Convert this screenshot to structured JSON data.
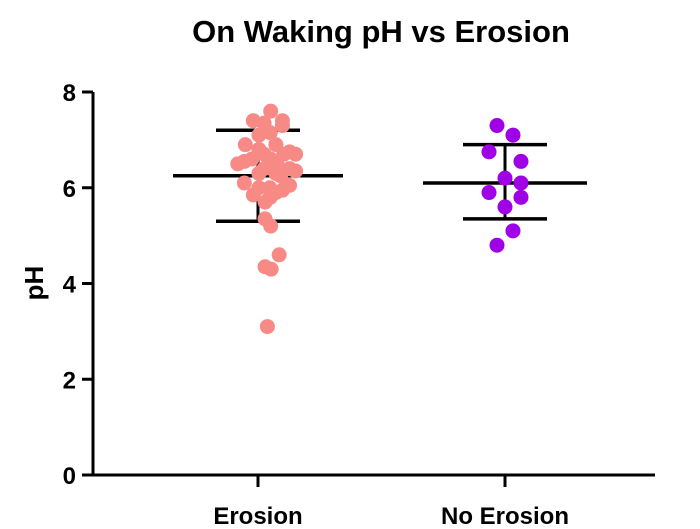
{
  "chart_data": {
    "type": "scatter",
    "title": "On Waking pH vs Erosion",
    "xlabel": "",
    "ylabel": "pH",
    "ylim": [
      0,
      8
    ],
    "yticks": [
      0,
      2,
      4,
      6,
      8
    ],
    "grid": false,
    "legend": "none",
    "categories": [
      "Erosion",
      "No Erosion"
    ],
    "series": [
      {
        "category": "Erosion",
        "color": "#f88a86",
        "summary": {
          "mean": 6.25,
          "sd_upper": 7.2,
          "sd_lower": 5.3
        },
        "points": [
          {
            "offset": -0.43,
            "y": 6.5
          },
          {
            "offset": -0.29,
            "y": 6.55
          },
          {
            "offset": -0.13,
            "y": 6.6
          },
          {
            "offset": -0.27,
            "y": 6.9
          },
          {
            "offset": -0.29,
            "y": 6.1
          },
          {
            "offset": -0.1,
            "y": 5.85
          },
          {
            "offset": -0.1,
            "y": 7.4
          },
          {
            "offset": 0.02,
            "y": 7.1
          },
          {
            "offset": 0.02,
            "y": 6.8
          },
          {
            "offset": 0.02,
            "y": 6.3
          },
          {
            "offset": 0.02,
            "y": 6.0
          },
          {
            "offset": 0.13,
            "y": 7.35
          },
          {
            "offset": 0.13,
            "y": 6.7
          },
          {
            "offset": 0.13,
            "y": 6.4
          },
          {
            "offset": 0.15,
            "y": 5.7
          },
          {
            "offset": 0.15,
            "y": 5.35
          },
          {
            "offset": 0.15,
            "y": 4.35
          },
          {
            "offset": 0.27,
            "y": 7.6
          },
          {
            "offset": 0.26,
            "y": 7.15
          },
          {
            "offset": 0.27,
            "y": 6.6
          },
          {
            "offset": 0.25,
            "y": 6.0
          },
          {
            "offset": 0.26,
            "y": 5.8
          },
          {
            "offset": 0.27,
            "y": 5.2
          },
          {
            "offset": 0.28,
            "y": 4.3
          },
          {
            "offset": 0.2,
            "y": 3.1
          },
          {
            "offset": 0.38,
            "y": 6.9
          },
          {
            "offset": 0.38,
            "y": 6.3
          },
          {
            "offset": 0.38,
            "y": 5.9
          },
          {
            "offset": 0.4,
            "y": 6.5
          },
          {
            "offset": 0.48,
            "y": 6.25
          },
          {
            "offset": 0.52,
            "y": 7.4
          },
          {
            "offset": 0.52,
            "y": 7.3
          },
          {
            "offset": 0.55,
            "y": 6.7
          },
          {
            "offset": 0.52,
            "y": 6.35
          },
          {
            "offset": 0.52,
            "y": 5.95
          },
          {
            "offset": 0.45,
            "y": 4.6
          },
          {
            "offset": 0.67,
            "y": 6.75
          },
          {
            "offset": 0.67,
            "y": 6.4
          },
          {
            "offset": 0.67,
            "y": 6.05
          },
          {
            "offset": 0.8,
            "y": 6.7
          },
          {
            "offset": 0.8,
            "y": 6.35
          }
        ]
      },
      {
        "category": "No Erosion",
        "color": "#a000e6",
        "summary": {
          "mean": 6.1,
          "sd_upper": 6.9,
          "sd_lower": 5.35
        },
        "points": [
          {
            "offset": -0.17,
            "y": 7.3
          },
          {
            "offset": 0.17,
            "y": 7.1
          },
          {
            "offset": -0.34,
            "y": 6.75
          },
          {
            "offset": 0.34,
            "y": 6.55
          },
          {
            "offset": 0.0,
            "y": 6.2
          },
          {
            "offset": 0.34,
            "y": 6.1
          },
          {
            "offset": -0.34,
            "y": 5.9
          },
          {
            "offset": 0.34,
            "y": 5.8
          },
          {
            "offset": 0.0,
            "y": 5.6
          },
          {
            "offset": 0.17,
            "y": 5.1
          },
          {
            "offset": -0.17,
            "y": 4.8
          }
        ]
      }
    ]
  }
}
